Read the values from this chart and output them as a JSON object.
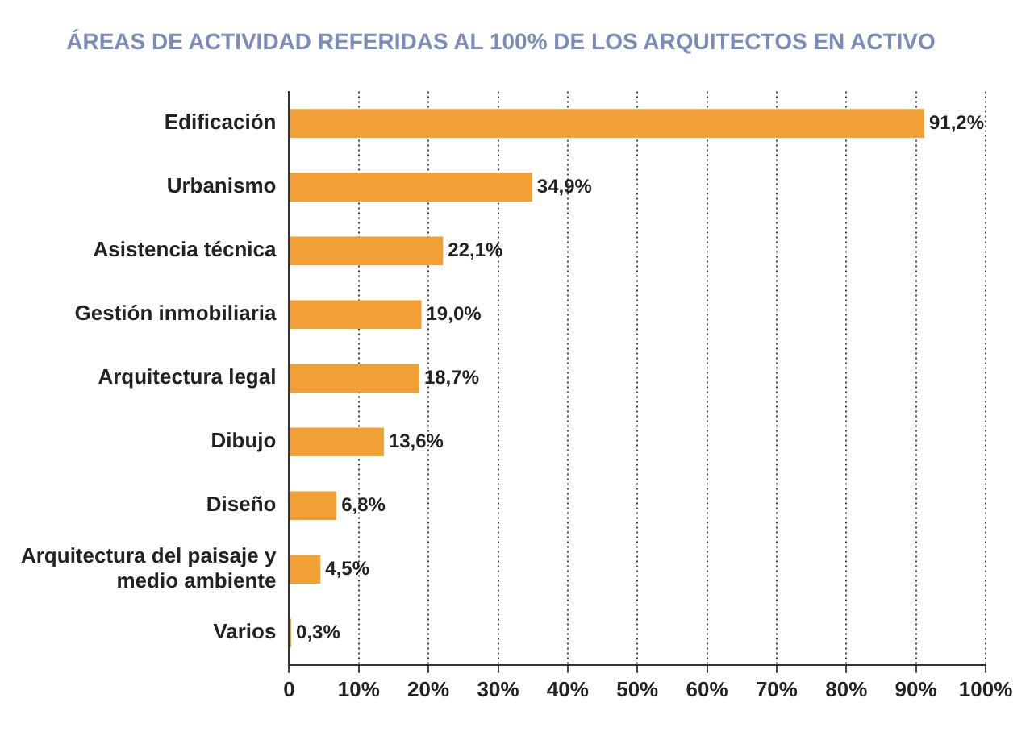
{
  "chart_data": {
    "type": "bar",
    "orientation": "horizontal",
    "title": "ÁREAS DE ACTIVIDAD REFERIDAS AL 100% DE LOS ARQUITECTOS EN ACTIVO",
    "categories": [
      "Edificación",
      "Urbanismo",
      "Asistencia técnica",
      "Gestión inmobiliaria",
      "Arquitectura legal",
      "Dibujo",
      "Diseño",
      "Arquitectura del paisaje y medio ambiente",
      "Varios"
    ],
    "values": [
      91.2,
      34.9,
      22.1,
      19.0,
      18.7,
      13.6,
      6.8,
      4.5,
      0.3
    ],
    "value_labels": [
      "91,2%",
      "34,9%",
      "22,1%",
      "19,0%",
      "18,7%",
      "13,6%",
      "6,8%",
      "4,5%",
      "0,3%"
    ],
    "color": "#f0a035",
    "xlim": [
      0,
      100
    ],
    "xticks": [
      0,
      {
        "value": 10,
        "label": "10%"
      },
      {
        "value": 20,
        "label": "20%"
      },
      {
        "value": 30,
        "label": "30%"
      },
      {
        "value": 40,
        "label": "40%"
      },
      {
        "value": 50,
        "label": "50%"
      },
      {
        "value": 60,
        "label": "60%"
      },
      {
        "value": 70,
        "label": "70%"
      },
      {
        "value": 80,
        "label": "80%"
      },
      {
        "value": 90,
        "label": "90%"
      },
      {
        "value": 100,
        "label": "100%"
      }
    ],
    "grid": "x",
    "legend": false
  }
}
